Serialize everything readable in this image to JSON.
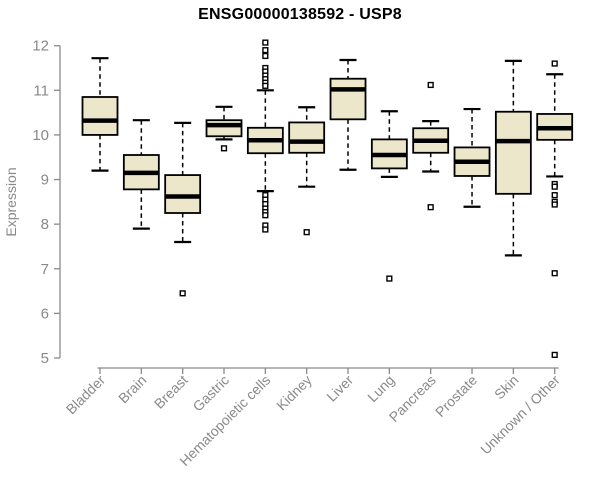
{
  "chart_data": {
    "type": "boxplot",
    "title": "ENSG00000138592 - USP8",
    "xlabel": "",
    "ylabel": "Expression",
    "ylim": [
      5,
      12
    ],
    "yticks": [
      5,
      6,
      7,
      8,
      9,
      10,
      11,
      12
    ],
    "grid": false,
    "legend": "none",
    "categories": [
      "Bladder",
      "Brain",
      "Breast",
      "Gastric",
      "Hematopoietic cells",
      "Kidney",
      "Liver",
      "Lung",
      "Pancreas",
      "Prostate",
      "Skin",
      "Unknown / Other"
    ],
    "series": [
      {
        "category": "Bladder",
        "whisker_low": 9.2,
        "q1": 10.0,
        "median": 10.32,
        "q3": 10.85,
        "whisker_high": 11.72,
        "outliers": []
      },
      {
        "category": "Brain",
        "whisker_low": 7.9,
        "q1": 8.78,
        "median": 9.15,
        "q3": 9.55,
        "whisker_high": 10.33,
        "outliers": []
      },
      {
        "category": "Breast",
        "whisker_low": 7.6,
        "q1": 8.25,
        "median": 8.62,
        "q3": 9.1,
        "whisker_high": 10.27,
        "outliers": [
          6.45
        ]
      },
      {
        "category": "Gastric",
        "whisker_low": 9.9,
        "q1": 9.97,
        "median": 10.22,
        "q3": 10.33,
        "whisker_high": 10.63,
        "outliers": [
          9.7
        ]
      },
      {
        "category": "Hematopoietic cells",
        "whisker_low": 8.74,
        "q1": 9.59,
        "median": 9.88,
        "q3": 10.16,
        "whisker_high": 11.0,
        "outliers": [
          12.07,
          11.9,
          11.77,
          11.5,
          11.42,
          11.33,
          11.25,
          11.17,
          11.1,
          8.65,
          8.55,
          8.45,
          8.35,
          8.27,
          8.2,
          7.97,
          7.88
        ]
      },
      {
        "category": "Kidney",
        "whisker_low": 8.84,
        "q1": 9.6,
        "median": 9.85,
        "q3": 10.28,
        "whisker_high": 10.62,
        "outliers": [
          7.82
        ]
      },
      {
        "category": "Liver",
        "whisker_low": 9.22,
        "q1": 10.35,
        "median": 11.02,
        "q3": 11.26,
        "whisker_high": 11.68,
        "outliers": []
      },
      {
        "category": "Lung",
        "whisker_low": 9.06,
        "q1": 9.25,
        "median": 9.55,
        "q3": 9.9,
        "whisker_high": 10.53,
        "outliers": [
          6.78
        ]
      },
      {
        "category": "Pancreas",
        "whisker_low": 9.18,
        "q1": 9.6,
        "median": 9.87,
        "q3": 10.15,
        "whisker_high": 10.31,
        "outliers": [
          11.12,
          8.38
        ]
      },
      {
        "category": "Prostate",
        "whisker_low": 8.39,
        "q1": 9.08,
        "median": 9.4,
        "q3": 9.72,
        "whisker_high": 10.58,
        "outliers": []
      },
      {
        "category": "Skin",
        "whisker_low": 7.3,
        "q1": 8.68,
        "median": 9.86,
        "q3": 10.52,
        "whisker_high": 11.66,
        "outliers": []
      },
      {
        "category": "Unknown / Other",
        "whisker_low": 9.07,
        "q1": 9.89,
        "median": 10.15,
        "q3": 10.47,
        "whisker_high": 11.36,
        "outliers": [
          11.6,
          8.9,
          8.84,
          8.65,
          8.5,
          8.44,
          6.9,
          5.07
        ]
      }
    ],
    "colors": {
      "box_fill": "#ECE6CB",
      "box_border": "#000000",
      "median_line": "#000000",
      "whisker": "#000000",
      "axis": "#8A8A8A",
      "axis_text": "#8A8A8A",
      "title_text": "#000000",
      "background": "#FFFFFF"
    }
  }
}
